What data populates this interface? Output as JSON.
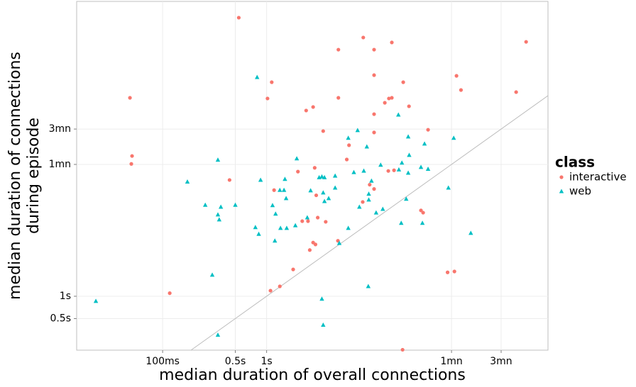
{
  "chart_data": {
    "type": "scatter",
    "x_label": "median duration of overall connections",
    "y_label": [
      "median duration of connections",
      "during episode"
    ],
    "log_x": true,
    "log_y": true,
    "grid": true,
    "xlim": [
      0.0149,
      508
    ],
    "ylim": [
      0.1876,
      9480
    ],
    "xticks": [
      {
        "value": 0.1,
        "label": "100ms"
      },
      {
        "value": 0.5,
        "label": "0.5s"
      },
      {
        "value": 1,
        "label": "1s"
      },
      {
        "value": 60,
        "label": "1mn"
      },
      {
        "value": 180,
        "label": "3mn"
      }
    ],
    "yticks": [
      {
        "value": 0.5,
        "label": "0.5s"
      },
      {
        "value": 1,
        "label": "1s"
      },
      {
        "value": 60,
        "label": "1mn"
      },
      {
        "value": 180,
        "label": "3mn"
      }
    ],
    "legend_title": "class",
    "legend_position": "right",
    "series": [
      {
        "name": "interactive",
        "color": "#F8766D",
        "marker": "circle",
        "x": [
          0.54,
          0.0485,
          0.0508,
          0.05,
          0.117,
          4.9,
          8.5,
          10.8,
          16,
          313,
          67,
          10.8,
          20.6,
          74,
          251,
          1.12,
          1.02,
          4.9,
          15,
          16,
          13.7,
          23.4,
          2.8,
          2.4,
          10.8,
          35.7,
          3.5,
          10.8,
          6.2,
          5.9,
          2.9,
          2.0,
          14.8,
          16.8,
          0.44,
          1.18,
          9.8,
          10.8,
          3.0,
          8.4,
          2.2,
          2.5,
          3.1,
          3.7,
          30.5,
          32,
          2.8,
          2.95,
          2.6,
          4.85,
          1.8,
          1.34,
          1.09,
          55,
          64,
          20.3
        ],
        "values": [
          5720,
          475,
          78,
          61,
          1.1,
          2120,
          3090,
          2120,
          2650,
          2700,
          940,
          960,
          771,
          605,
          567,
          771,
          465,
          475,
          465,
          475,
          407,
          365,
          357,
          320,
          286,
          176,
          169,
          162,
          109,
          70,
          54,
          48,
          49,
          50,
          37,
          27,
          32,
          28,
          23,
          18.7,
          10.3,
          10.3,
          11.5,
          10.1,
          14.4,
          13.4,
          5.3,
          5.0,
          4.2,
          5.6,
          2.3,
          1.36,
          1.19,
          2.1,
          2.16,
          0.19
        ]
      },
      {
        "name": "web",
        "color": "#00BFC4",
        "marker": "triangle",
        "x": [
          0.0228,
          0.81,
          0.173,
          0.34,
          0.257,
          0.363,
          0.5,
          0.34,
          0.35,
          0.3,
          0.34,
          0.875,
          0.78,
          0.84,
          1.14,
          1.22,
          1.34,
          1.47,
          1.54,
          1.5,
          1.36,
          1.56,
          1.2,
          1.95,
          1.89,
          2.46,
          3.4,
          3.2,
          3.6,
          2.65,
          3.5,
          3.95,
          4.56,
          3.6,
          4.56,
          6.1,
          7.5,
          9.2,
          8.6,
          6.9,
          12.5,
          18.5,
          23,
          23.5,
          20,
          18.7,
          23,
          33,
          30.5,
          35.7,
          63,
          56,
          92,
          22,
          31.5,
          19.7,
          11.3,
          13.1,
          9.6,
          7.8,
          6.1,
          5.0,
          9.5,
          3.5,
          3.4,
          10.2,
          9.6
        ],
        "values": [
          0.86,
          900,
          35,
          69,
          17,
          16,
          17,
          12.6,
          10.8,
          1.94,
          0.3,
          37,
          8.5,
          6.9,
          16.8,
          12.9,
          27,
          27,
          20.9,
          38,
          8.3,
          8.3,
          5.6,
          72,
          9.0,
          11.5,
          41,
          40,
          40,
          26.6,
          24.9,
          20.9,
          42,
          19.1,
          29,
          136,
          173,
          104,
          49,
          47,
          59,
          280,
          142,
          80,
          63,
          51,
          46,
          114,
          55,
          52,
          136,
          29,
          7.1,
          20.5,
          9.7,
          9.7,
          13.4,
          15,
          20,
          16,
          8.3,
          5.2,
          1.36,
          0.41,
          0.92,
          36,
          24
        ]
      }
    ]
  }
}
